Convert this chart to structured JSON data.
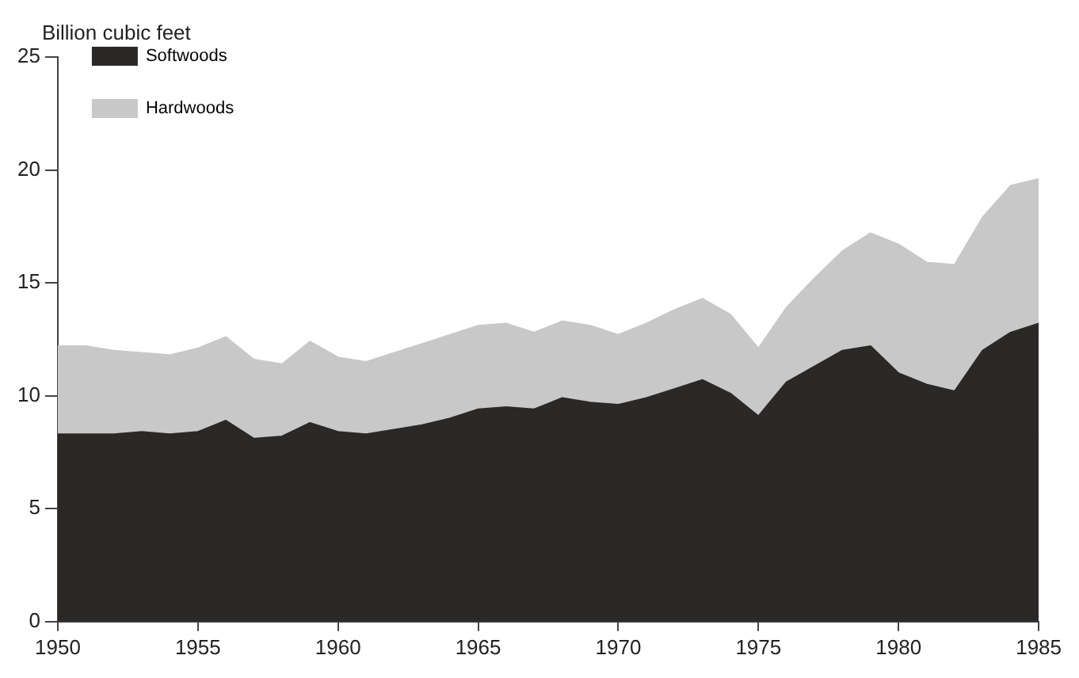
{
  "chart_data": {
    "type": "area",
    "ylabel": "Billion cubic feet",
    "stacked": true,
    "x": [
      1950,
      1951,
      1952,
      1953,
      1954,
      1955,
      1956,
      1957,
      1958,
      1959,
      1960,
      1961,
      1962,
      1963,
      1964,
      1965,
      1966,
      1967,
      1968,
      1969,
      1970,
      1971,
      1972,
      1973,
      1974,
      1975,
      1976,
      1977,
      1978,
      1979,
      1980,
      1981,
      1982,
      1983,
      1984,
      1985
    ],
    "series": [
      {
        "name": "Softwoods",
        "color": "#2b2927",
        "values": [
          8.3,
          8.3,
          8.3,
          8.4,
          8.3,
          8.4,
          8.9,
          8.1,
          8.2,
          8.8,
          8.4,
          8.3,
          8.5,
          8.7,
          9.0,
          9.4,
          9.5,
          9.4,
          9.9,
          9.7,
          9.6,
          9.9,
          10.3,
          10.7,
          10.1,
          9.1,
          10.6,
          11.3,
          12.0,
          12.2,
          11.0,
          10.5,
          10.2,
          12.0,
          12.8,
          13.2
        ]
      },
      {
        "name": "Hardwoods",
        "color": "#c8c8c8",
        "values": [
          3.9,
          3.9,
          3.7,
          3.5,
          3.5,
          3.7,
          3.7,
          3.5,
          3.2,
          3.6,
          3.3,
          3.2,
          3.4,
          3.6,
          3.7,
          3.7,
          3.7,
          3.4,
          3.4,
          3.4,
          3.1,
          3.3,
          3.5,
          3.6,
          3.5,
          3.0,
          3.3,
          3.9,
          4.4,
          5.0,
          5.7,
          5.4,
          5.6,
          5.9,
          6.5,
          6.4
        ]
      }
    ],
    "xlim": [
      1950,
      1985
    ],
    "xticks": [
      1950,
      1955,
      1960,
      1965,
      1970,
      1975,
      1980,
      1985
    ],
    "ylim": [
      0,
      25
    ],
    "yticks": [
      0,
      5,
      10,
      15,
      20,
      25
    ],
    "grid": false,
    "legend": "top left"
  }
}
